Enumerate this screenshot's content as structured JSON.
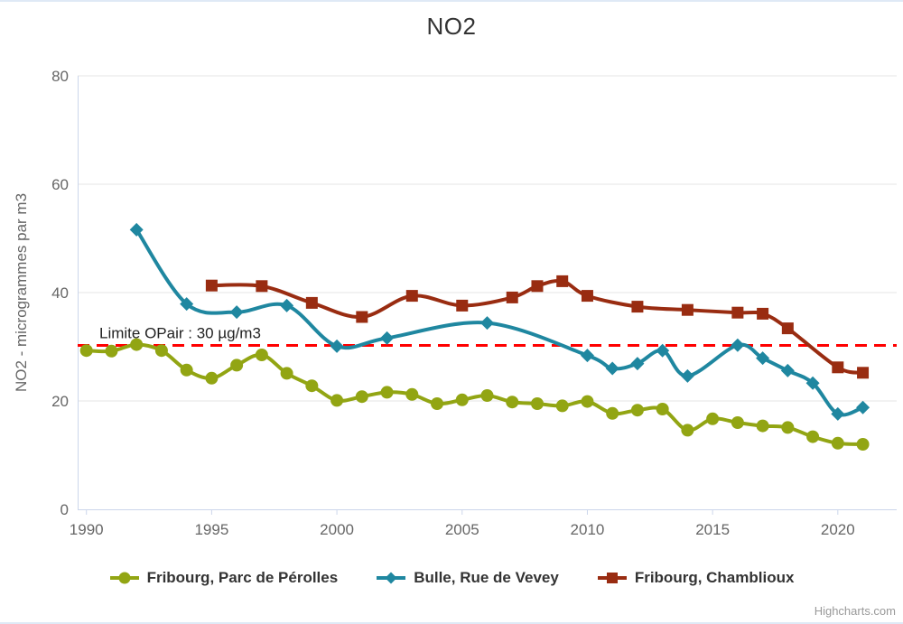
{
  "credits": "Highcharts.com",
  "chart_data": {
    "type": "line",
    "title": "NO2",
    "xlabel": "",
    "ylabel": "NO2 - microgrammes par m3",
    "ylim": [
      0,
      80
    ],
    "xlim": [
      1989.65,
      2022.35
    ],
    "yticks": [
      0,
      20,
      40,
      60,
      80
    ],
    "xticks": [
      1990,
      1995,
      2000,
      2005,
      2010,
      2015,
      2020
    ],
    "grid": true,
    "legend_position": "bottom",
    "colors": {
      "grid": "#e6e6e6",
      "axis": "#ccd6eb",
      "tick_text": "#666666",
      "title_text": "#333333",
      "limit_line": "#ff0000"
    },
    "plot_line": {
      "value": 30,
      "label": "Limite OPair : 30 µg/m3",
      "color": "#ff0000",
      "style": "dashed"
    },
    "series": [
      {
        "name": "Fribourg, Parc de Pérolles",
        "color": "#92a513",
        "marker": "circle",
        "points": [
          [
            1990,
            29.3
          ],
          [
            1991,
            29.2
          ],
          [
            1992,
            30.4
          ],
          [
            1993,
            29.3
          ],
          [
            1994,
            25.7
          ],
          [
            1995,
            24.2
          ],
          [
            1996,
            26.6
          ],
          [
            1997,
            28.5
          ],
          [
            1998,
            25.1
          ],
          [
            1999,
            22.8
          ],
          [
            2000,
            20.1
          ],
          [
            2001,
            20.8
          ],
          [
            2002,
            21.6
          ],
          [
            2003,
            21.2
          ],
          [
            2004,
            19.5
          ],
          [
            2005,
            20.2
          ],
          [
            2006,
            21.0
          ],
          [
            2007,
            19.8
          ],
          [
            2008,
            19.5
          ],
          [
            2009,
            19.1
          ],
          [
            2010,
            19.9
          ],
          [
            2011,
            17.7
          ],
          [
            2012,
            18.3
          ],
          [
            2013,
            18.5
          ],
          [
            2014,
            14.6
          ],
          [
            2015,
            16.7
          ],
          [
            2016,
            16.0
          ],
          [
            2017,
            15.4
          ],
          [
            2018,
            15.1
          ],
          [
            2019,
            13.4
          ],
          [
            2020,
            12.2
          ],
          [
            2021,
            12.0
          ]
        ]
      },
      {
        "name": "Bulle, Rue de Vevey",
        "color": "#1f87a0",
        "marker": "diamond",
        "points": [
          [
            1992,
            51.6
          ],
          [
            1994,
            37.9
          ],
          [
            1996,
            36.4
          ],
          [
            1998,
            37.6
          ],
          [
            2000,
            30.1
          ],
          [
            2002,
            31.6
          ],
          [
            2006,
            34.4
          ],
          [
            2010,
            28.4
          ],
          [
            2011,
            26.0
          ],
          [
            2012,
            26.9
          ],
          [
            2013,
            29.3
          ],
          [
            2014,
            24.6
          ],
          [
            2016,
            30.3
          ],
          [
            2017,
            27.9
          ],
          [
            2018,
            25.6
          ],
          [
            2019,
            23.3
          ],
          [
            2020,
            17.6
          ],
          [
            2021,
            18.8
          ]
        ]
      },
      {
        "name": "Fribourg, Chamblioux",
        "color": "#992c11",
        "marker": "square",
        "points": [
          [
            1995,
            41.3
          ],
          [
            1997,
            41.2
          ],
          [
            1999,
            38.1
          ],
          [
            2001,
            35.5
          ],
          [
            2003,
            39.4
          ],
          [
            2005,
            37.6
          ],
          [
            2007,
            39.1
          ],
          [
            2008,
            41.2
          ],
          [
            2009,
            42.1
          ],
          [
            2010,
            39.4
          ],
          [
            2012,
            37.4
          ],
          [
            2014,
            36.8
          ],
          [
            2016,
            36.3
          ],
          [
            2017,
            36.1
          ],
          [
            2018,
            33.4
          ],
          [
            2020,
            26.2
          ],
          [
            2021,
            25.2
          ]
        ]
      }
    ]
  }
}
